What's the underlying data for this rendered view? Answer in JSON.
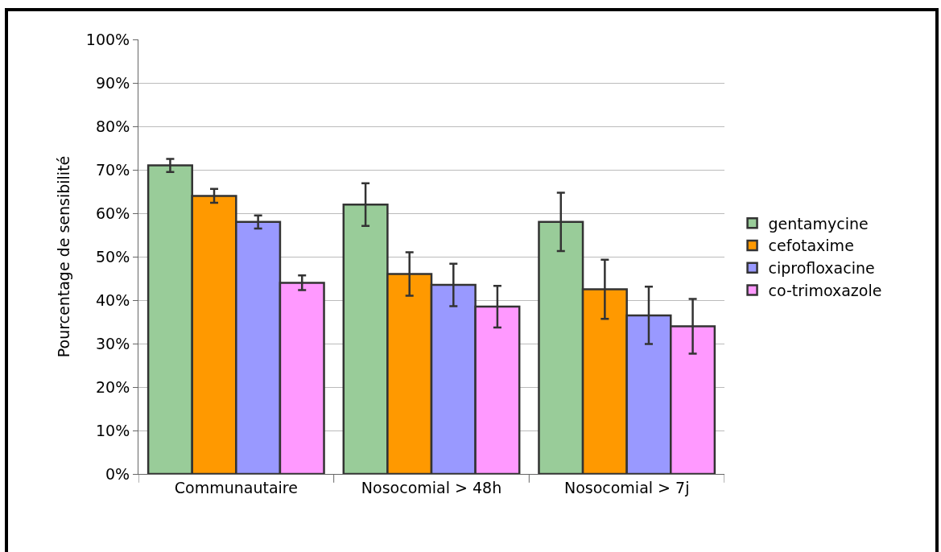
{
  "chart_data": {
    "type": "bar",
    "ylabel": "Pourcentage de sensibilité",
    "categories": [
      "Communautaire",
      "Nosocomial > 48h",
      "Nosocomial > 7j"
    ],
    "series": [
      {
        "name": "gentamycine",
        "color": "#99cc99",
        "values": [
          71,
          62,
          58
        ],
        "errors": [
          1.5,
          4.9,
          6.7
        ]
      },
      {
        "name": "cefotaxime",
        "color": "#ff9900",
        "values": [
          64,
          46,
          42.5
        ],
        "errors": [
          1.6,
          5,
          6.8
        ]
      },
      {
        "name": "ciprofloxacine",
        "color": "#9999ff",
        "values": [
          58,
          43.5,
          36.5
        ],
        "errors": [
          1.5,
          4.9,
          6.6
        ]
      },
      {
        "name": "co-trimoxazole",
        "color": "#ff99ff",
        "values": [
          44,
          38.5,
          34
        ],
        "errors": [
          1.7,
          4.8,
          6.3
        ]
      }
    ],
    "ylim": [
      0,
      100
    ],
    "yticks": [
      {
        "value": 0,
        "label": "0%"
      },
      {
        "value": 10,
        "label": "10%"
      },
      {
        "value": 20,
        "label": "20%"
      },
      {
        "value": 30,
        "label": "30%"
      },
      {
        "value": 40,
        "label": "40%"
      },
      {
        "value": 50,
        "label": "50%"
      },
      {
        "value": 60,
        "label": "60%"
      },
      {
        "value": 70,
        "label": "70%"
      },
      {
        "value": 80,
        "label": "80%"
      },
      {
        "value": 90,
        "label": "90%"
      },
      {
        "value": 100,
        "label": "100%"
      }
    ],
    "grid": "y",
    "legend": "right"
  }
}
